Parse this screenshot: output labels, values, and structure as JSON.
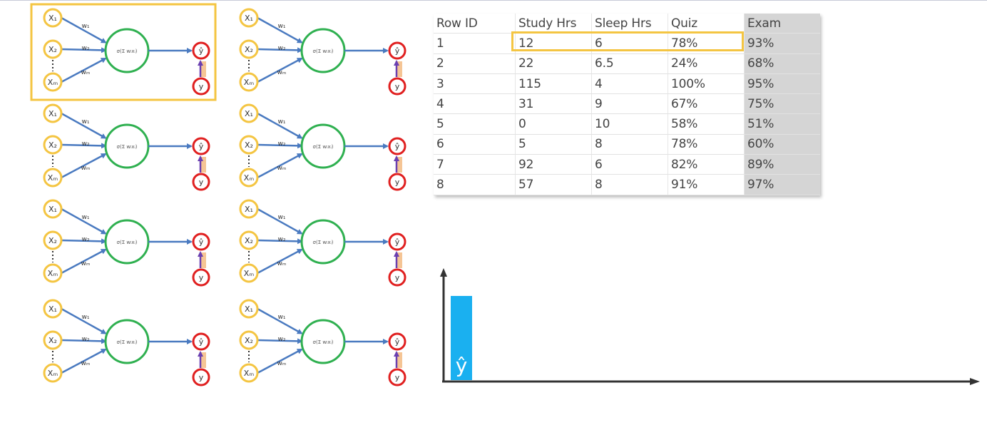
{
  "diagram": {
    "inputs": [
      "X₁",
      "X₂",
      "Xₘ"
    ],
    "weights": [
      "w₁",
      "w₂",
      "wₘ"
    ],
    "output": "ŷ",
    "target": "y",
    "activation": "σ(Σ wᵢxᵢ)"
  },
  "table": {
    "headers": [
      "Row ID",
      "Study Hrs",
      "Sleep Hrs",
      "Quiz",
      "Exam"
    ],
    "rows": [
      [
        "1",
        "12",
        "6",
        "78%",
        "93%"
      ],
      [
        "2",
        "22",
        "6.5",
        "24%",
        "68%"
      ],
      [
        "3",
        "115",
        "4",
        "100%",
        "95%"
      ],
      [
        "4",
        "31",
        "9",
        "67%",
        "75%"
      ],
      [
        "5",
        "0",
        "10",
        "58%",
        "51%"
      ],
      [
        "6",
        "5",
        "8",
        "78%",
        "60%"
      ],
      [
        "7",
        "92",
        "6",
        "82%",
        "89%"
      ],
      [
        "8",
        "57",
        "8",
        "91%",
        "97%"
      ]
    ]
  },
  "chart": {
    "bar_label": "ŷ",
    "bar_color": "#1ab0f0"
  },
  "colors": {
    "input_node": "#f4c542",
    "neuron": "#2fb050",
    "output_node": "#e02020",
    "arrow": "#4a7ac0",
    "highlight": "#f4c542"
  }
}
